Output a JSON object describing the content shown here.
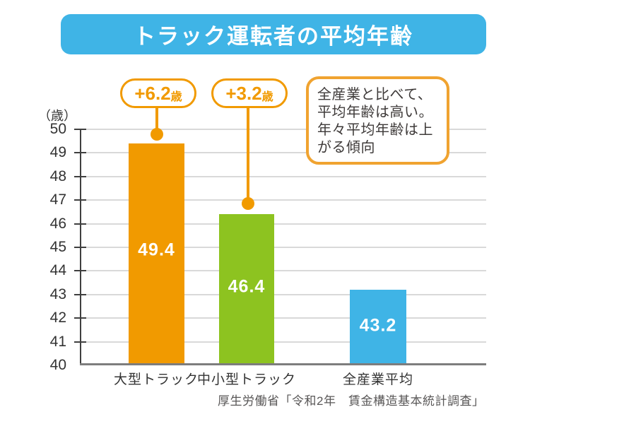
{
  "title": "トラック運転者の平均年齢",
  "y_axis": {
    "unit_label": "（歳）",
    "ticks": [
      50,
      49,
      48,
      47,
      46,
      45,
      44,
      43,
      42,
      41,
      40
    ]
  },
  "chart_data": {
    "type": "bar",
    "title": "トラック運転者の平均年齢",
    "categories": [
      "大型トラック",
      "中小型トラック",
      "全産業平均"
    ],
    "values": [
      49.4,
      46.4,
      43.2
    ],
    "value_labels": [
      "49.4",
      "46.4",
      "43.2"
    ],
    "bar_colors": [
      "#F19A00",
      "#8DC320",
      "#3FB4E6"
    ],
    "ylabel": "（歳）",
    "ylim": [
      40,
      50
    ],
    "grid": true,
    "legend": "none",
    "annotations": [
      {
        "label": "+6.2歳",
        "applies_to": "大型トラック"
      },
      {
        "label": "+3.2歳",
        "applies_to": "中小型トラック"
      }
    ]
  },
  "callouts": [
    {
      "text": "+6.2",
      "unit": "歳"
    },
    {
      "text": "+3.2",
      "unit": "歳"
    }
  ],
  "note": {
    "lines": [
      "全産業と比べて、",
      "平均年齢は高い。",
      "年々平均年齢は上",
      "がる傾向"
    ]
  },
  "source": "厚生労働省「令和2年　賃金構造基本統計調査」",
  "colors": {
    "banner_blue": "#3FB4E6",
    "bar_orange": "#F19A00",
    "bar_green": "#8DC320",
    "bar_blue": "#3FB4E6",
    "callout_orange": "#F19A00",
    "note_border": "#F0A330",
    "gridline": "#D9D9D9",
    "axis": "#3F3F3F",
    "baseline": "#7D7D7D",
    "text_dark": "#333333",
    "value_text": "#FFFFFF",
    "source_text": "#595757"
  }
}
